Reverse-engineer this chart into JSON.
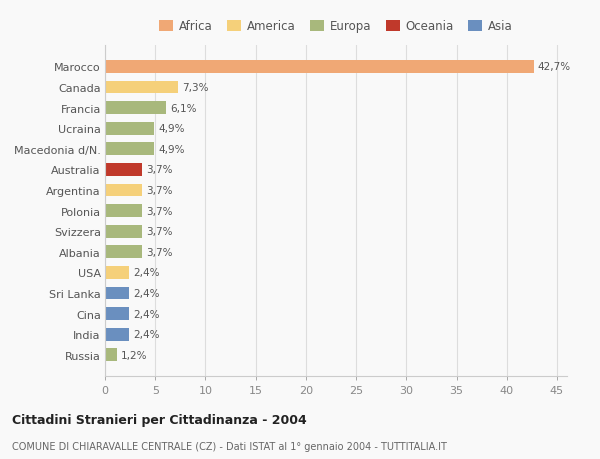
{
  "countries": [
    "Marocco",
    "Canada",
    "Francia",
    "Ucraina",
    "Macedonia d/N.",
    "Australia",
    "Argentina",
    "Polonia",
    "Svizzera",
    "Albania",
    "USA",
    "Sri Lanka",
    "Cina",
    "India",
    "Russia"
  ],
  "values": [
    42.7,
    7.3,
    6.1,
    4.9,
    4.9,
    3.7,
    3.7,
    3.7,
    3.7,
    3.7,
    2.4,
    2.4,
    2.4,
    2.4,
    1.2
  ],
  "labels": [
    "42,7%",
    "7,3%",
    "6,1%",
    "4,9%",
    "4,9%",
    "3,7%",
    "3,7%",
    "3,7%",
    "3,7%",
    "3,7%",
    "2,4%",
    "2,4%",
    "2,4%",
    "2,4%",
    "1,2%"
  ],
  "bar_colors": [
    "#f0a875",
    "#f5d07a",
    "#a8b87c",
    "#a8b87c",
    "#a8b87c",
    "#c0392b",
    "#f5d07a",
    "#a8b87c",
    "#a8b87c",
    "#a8b87c",
    "#f5d07a",
    "#6a8fbf",
    "#6a8fbf",
    "#6a8fbf",
    "#a8b87c"
  ],
  "legend_labels": [
    "Africa",
    "America",
    "Europa",
    "Oceania",
    "Asia"
  ],
  "legend_colors": [
    "#f0a875",
    "#f5d07a",
    "#a8b87c",
    "#c0392b",
    "#6a8fbf"
  ],
  "title": "Cittadini Stranieri per Cittadinanza - 2004",
  "subtitle": "COMUNE DI CHIARAVALLE CENTRALE (CZ) - Dati ISTAT al 1° gennaio 2004 - TUTTITALIA.IT",
  "xlim": [
    0,
    46
  ],
  "xticks": [
    0,
    5,
    10,
    15,
    20,
    25,
    30,
    35,
    40,
    45
  ],
  "background_color": "#f9f9f9",
  "grid_color": "#dddddd"
}
